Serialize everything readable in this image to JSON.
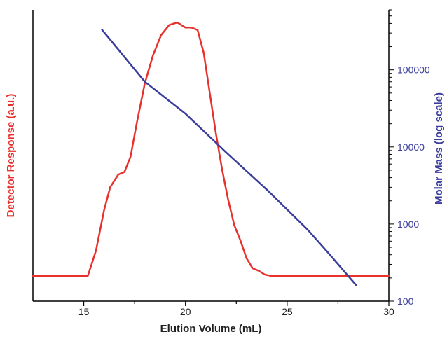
{
  "chart_data": {
    "type": "line",
    "xlabel": "Elution Volume (mL)",
    "ylabel_left": "Detector Response (a.u.)",
    "ylabel_right": "Molar Mass (log scale)",
    "xlim": [
      12.5,
      30
    ],
    "x_ticks": [
      15,
      20,
      25,
      30
    ],
    "x_tick_labels": [
      "15",
      "20",
      "25",
      "30"
    ],
    "y_right_scale": "log",
    "y_right_lim": [
      100,
      600000
    ],
    "y_right_ticks": [
      100,
      1000,
      10000,
      100000
    ],
    "y_right_tick_labels": [
      "100",
      "1000",
      "10000",
      "100000"
    ],
    "y_left_lim": [
      -0.1,
      1.05
    ],
    "grid": false,
    "colors": {
      "detector": "#e8302c",
      "molar_mass": "#3a3d9c",
      "axis": "#000000"
    },
    "series": [
      {
        "axis": "left",
        "x": [
          12.5,
          15.2,
          15.6,
          16.0,
          16.3,
          16.7,
          17.0,
          17.3,
          17.6,
          18.0,
          18.4,
          18.8,
          19.2,
          19.6,
          20.0,
          20.3,
          20.6,
          20.9,
          21.2,
          21.5,
          21.8,
          22.1,
          22.4,
          22.7,
          23.0,
          23.3,
          23.6,
          23.9,
          24.2,
          24.5,
          25.0,
          30.0
        ],
        "y": [
          0.0,
          0.0,
          0.1,
          0.26,
          0.35,
          0.4,
          0.41,
          0.47,
          0.6,
          0.76,
          0.87,
          0.95,
          0.99,
          1.0,
          0.98,
          0.98,
          0.97,
          0.88,
          0.72,
          0.56,
          0.42,
          0.3,
          0.2,
          0.14,
          0.07,
          0.03,
          0.02,
          0.005,
          0.0,
          0.0,
          0.0,
          0.0
        ]
      },
      {
        "axis": "right",
        "x": [
          15.9,
          18.0,
          20.0,
          22.0,
          24.0,
          26.0,
          27.0,
          28.4
        ],
        "y": [
          330000,
          70000,
          27000,
          8500,
          2800,
          850,
          430,
          160
        ]
      }
    ]
  }
}
